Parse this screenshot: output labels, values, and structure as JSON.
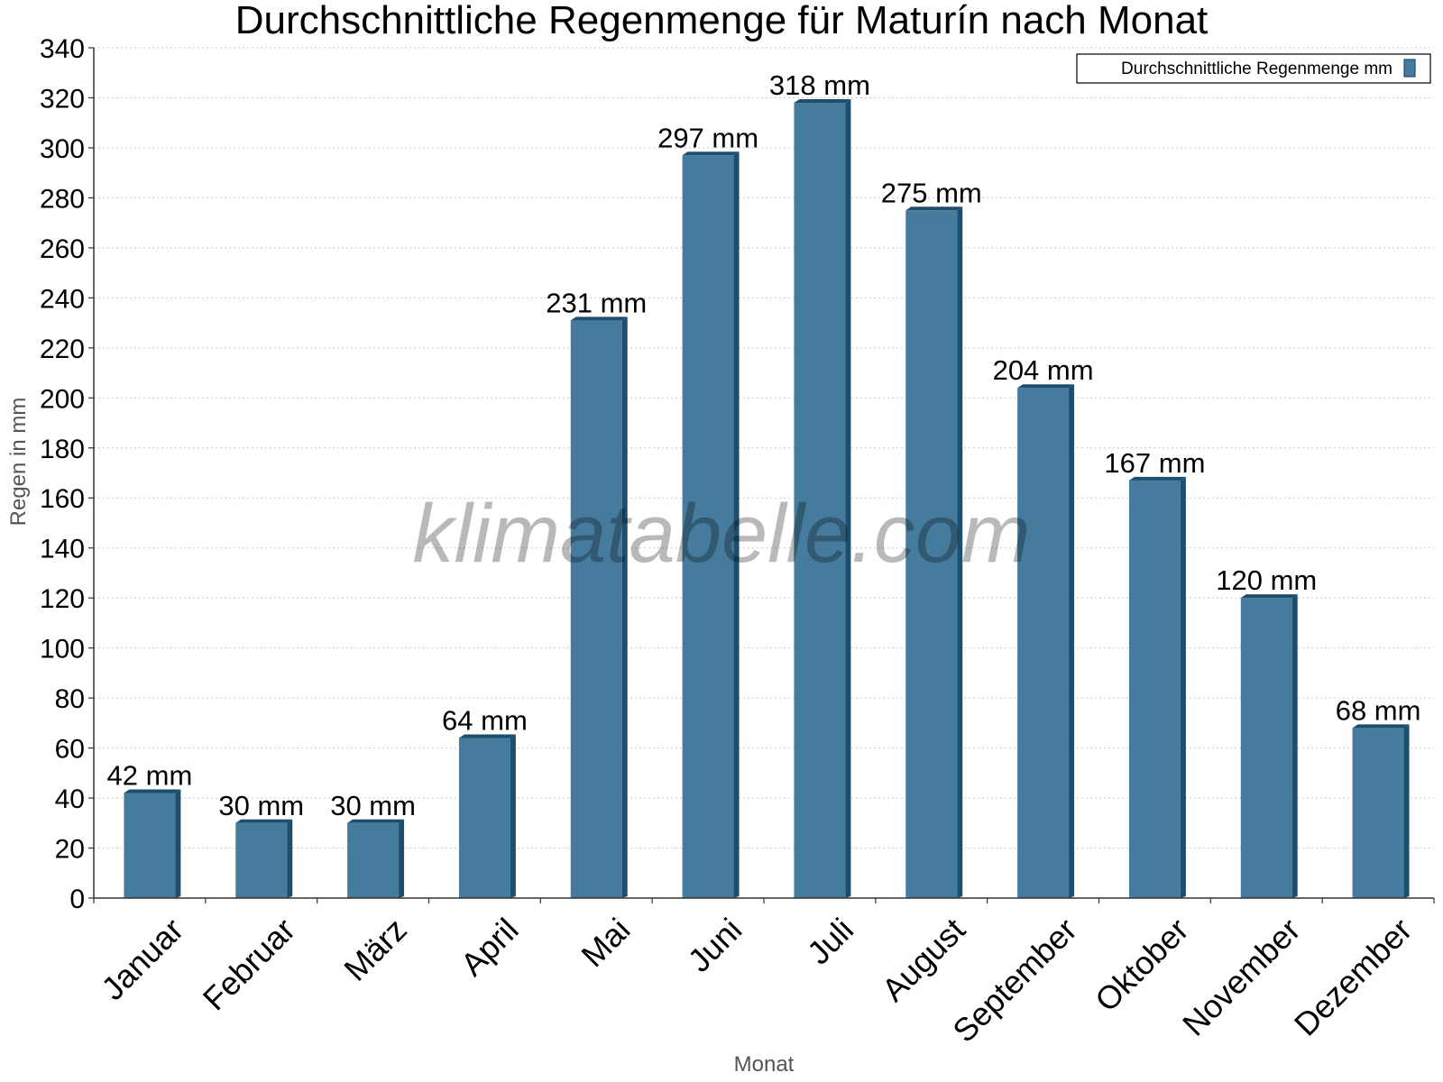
{
  "chart_data": {
    "type": "bar",
    "title": "Durchschnittliche Regenmenge für Maturín nach Monat",
    "xlabel": "Monat",
    "ylabel": "Regen in mm",
    "categories": [
      "Januar",
      "Februar",
      "März",
      "April",
      "Mai",
      "Juni",
      "Juli",
      "August",
      "September",
      "Oktober",
      "November",
      "Dezember"
    ],
    "series": [
      {
        "name": "Durchschnittliche Regenmenge mm",
        "values": [
          42,
          30,
          30,
          64,
          231,
          297,
          318,
          275,
          204,
          167,
          120,
          68
        ],
        "labels": [
          "42 mm",
          "30 mm",
          "30 mm",
          "64 mm",
          "231 mm",
          "297 mm",
          "318 mm",
          "275 mm",
          "204 mm",
          "167 mm",
          "120 mm",
          "68 mm"
        ],
        "color": "#457b9d",
        "edge_color": "#1d4e6e"
      }
    ],
    "ylim": [
      0,
      340
    ],
    "yticks": [
      0,
      20,
      40,
      60,
      80,
      100,
      120,
      140,
      160,
      180,
      200,
      220,
      240,
      260,
      280,
      300,
      320,
      340
    ],
    "grid": true,
    "legend": "top-right",
    "watermark": "klimatabelle.com"
  }
}
